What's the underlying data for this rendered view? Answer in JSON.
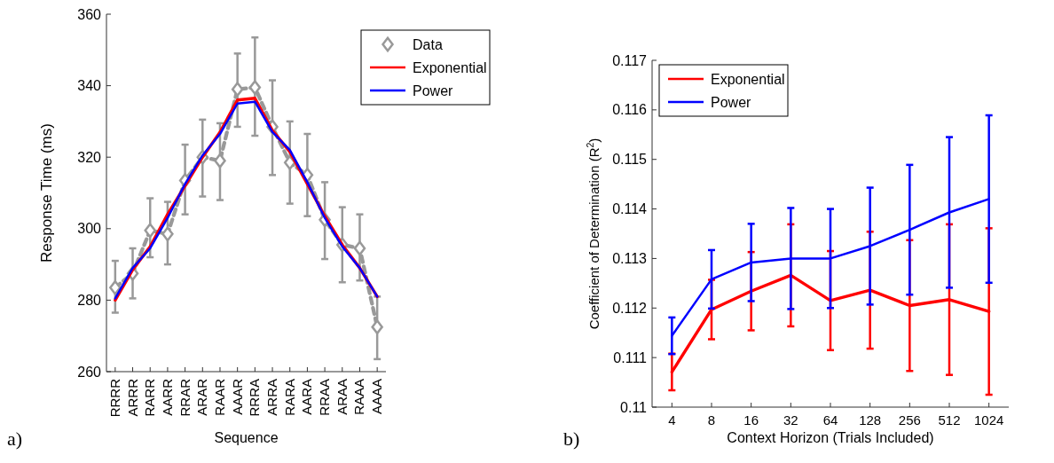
{
  "chart_data": [
    {
      "type": "line",
      "xlabel": "Sequence",
      "ylabel": "Response Time (ms)",
      "categories": [
        "RRRR",
        "ARRR",
        "RARR",
        "AARR",
        "RRAR",
        "ARAR",
        "RAAR",
        "AAAR",
        "RRRA",
        "ARRA",
        "RARA",
        "AARA",
        "RRAA",
        "ARAA",
        "RAAA",
        "AAAA"
      ],
      "ylim": [
        260,
        360
      ],
      "yticks": [
        260,
        280,
        300,
        320,
        340,
        360
      ],
      "grid": false,
      "legend": "top right",
      "annotations": [
        "a)"
      ],
      "series": [
        {
          "name": "Data",
          "color": "#999999",
          "marker": "diamond",
          "line_style": "dashed",
          "values": [
            283.5,
            287.5,
            299.5,
            298.5,
            313.5,
            320,
            319,
            339,
            339.5,
            328.5,
            318.5,
            315,
            302.5,
            295.5,
            294.5,
            272.5
          ],
          "errors": [
            [
              276.5,
              291
            ],
            [
              280.5,
              294.5
            ],
            [
              292,
              308.5
            ],
            [
              290,
              307.5
            ],
            [
              304,
              323.5
            ],
            [
              309,
              330.5
            ],
            [
              308,
              329.5
            ],
            [
              328.5,
              349
            ],
            [
              326,
              353.5
            ],
            [
              315,
              341.5
            ],
            [
              307,
              330
            ],
            [
              303.5,
              326.5
            ],
            [
              291.5,
              313
            ],
            [
              285,
              306
            ],
            [
              285.5,
              304
            ],
            [
              263.5,
              281
            ]
          ]
        },
        {
          "name": "Exponential",
          "color": "#ff0000",
          "values": [
            280,
            288.5,
            295,
            304,
            312,
            320,
            327,
            336,
            336.5,
            327.5,
            321.5,
            312.5,
            303.5,
            295.5,
            289,
            281
          ]
        },
        {
          "name": "Power",
          "color": "#0000ff",
          "values": [
            280.5,
            289,
            294.5,
            303,
            312.5,
            320.5,
            326.5,
            335,
            335.5,
            327,
            322,
            313,
            303,
            295,
            289,
            281
          ]
        }
      ]
    },
    {
      "type": "line",
      "xlabel": "Context Horizon (Trials Included)",
      "ylabel": "Coefficient of Determination (R$^{2}$)",
      "categories": [
        "4",
        "8",
        "16",
        "32",
        "64",
        "128",
        "256",
        "512",
        "1024"
      ],
      "ylim": [
        0.11,
        0.117
      ],
      "yticks": [
        0.11,
        0.111,
        0.112,
        0.113,
        0.114,
        0.115,
        0.116,
        0.117
      ],
      "grid": false,
      "legend": "top left",
      "annotations": [
        "b)"
      ],
      "series": [
        {
          "name": "Exponential",
          "color": "#ff0000",
          "values": [
            0.11071,
            0.11197,
            0.11234,
            0.11266,
            0.11215,
            0.11236,
            0.11205,
            0.11217,
            0.11193
          ],
          "errors": [
            0.00037,
            0.0006,
            0.00079,
            0.00103,
            0.001,
            0.00118,
            0.00132,
            0.00152,
            0.00168
          ]
        },
        {
          "name": "Power",
          "color": "#0000ff",
          "values": [
            0.11144,
            0.11258,
            0.11292,
            0.113,
            0.113,
            0.11325,
            0.11358,
            0.11393,
            0.1142
          ],
          "errors": [
            0.00037,
            0.00059,
            0.00078,
            0.00102,
            0.001,
            0.00118,
            0.00131,
            0.00152,
            0.00169
          ]
        }
      ]
    }
  ]
}
